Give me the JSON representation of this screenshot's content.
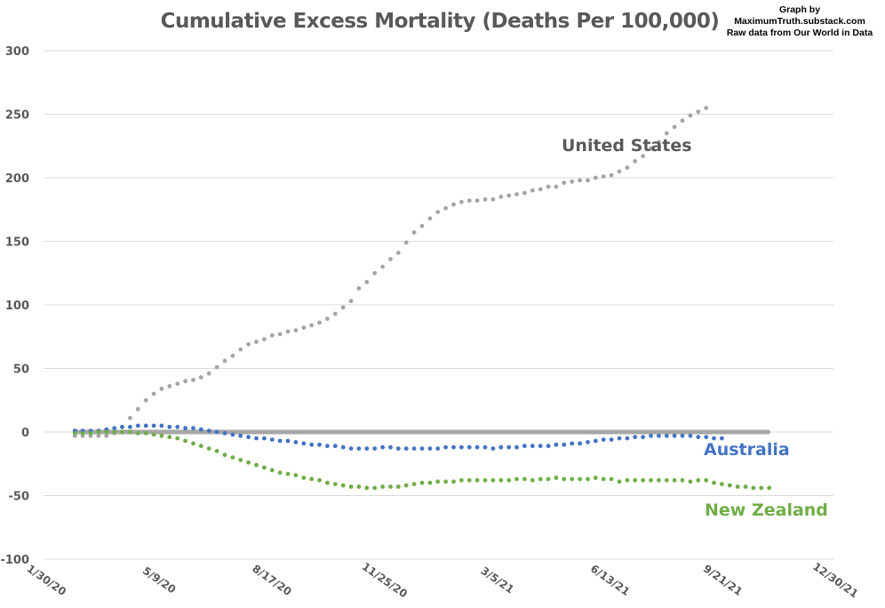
{
  "chart_data": {
    "type": "line",
    "title": "Cumulative Excess Mortality (Deaths Per 100,000)",
    "credit": [
      "Graph by",
      "MaximumTruth.substack.com",
      "Raw data from Our World in Data"
    ],
    "xlabel": "",
    "ylabel": "",
    "ylim": [
      -100,
      300
    ],
    "yticks": [
      300,
      250,
      200,
      150,
      100,
      50,
      0,
      -50,
      -100
    ],
    "ytick_labels": [
      "300",
      "250",
      "200",
      "150",
      "100",
      "50",
      "0",
      "-50",
      "-100"
    ],
    "xlim_days": [
      0,
      700
    ],
    "xticks_days": [
      0,
      100,
      200,
      300,
      400,
      500,
      600,
      700
    ],
    "xtick_labels": [
      "1/30/20",
      "5/9/20",
      "8/17/20",
      "11/25/20",
      "3/5/21",
      "6/13/21",
      "9/21/21",
      "12/30/21"
    ],
    "grid": true,
    "legend": "inline-labels",
    "x_start_day": 27,
    "x_step_days": 7,
    "baseline": {
      "name": "Zero baseline",
      "value": 0,
      "color": "#a6a6a6",
      "end_day": 642
    },
    "series": [
      {
        "name": "United States",
        "label": "United States",
        "color": "#a5a5a5",
        "label_color": "#595959",
        "values": [
          -3,
          -3,
          -3,
          -3,
          -3,
          -1,
          4,
          11,
          18,
          25,
          30,
          34,
          36,
          38,
          40,
          41,
          43,
          46,
          51,
          56,
          60,
          65,
          69,
          71,
          73,
          76,
          77,
          79,
          80,
          82,
          84,
          86,
          89,
          93,
          98,
          103,
          113,
          118,
          125,
          130,
          136,
          141,
          149,
          157,
          162,
          168,
          173,
          176,
          179,
          181,
          182,
          182,
          183,
          183,
          185,
          186,
          187,
          188,
          190,
          191,
          193,
          193,
          196,
          197,
          198,
          198,
          200,
          201,
          202,
          205,
          208,
          213,
          217,
          223,
          228,
          235,
          240,
          245,
          249,
          252,
          255
        ]
      },
      {
        "name": "Australia",
        "label": "Australia",
        "color": "#4472c4",
        "label_color": "#4472c4",
        "values": [
          1,
          1,
          1,
          1,
          2,
          3,
          4,
          4,
          5,
          5,
          5,
          5,
          4,
          4,
          3,
          3,
          2,
          1,
          0,
          -1,
          -2,
          -3,
          -4,
          -5,
          -5,
          -6,
          -7,
          -7,
          -8,
          -9,
          -10,
          -10,
          -11,
          -11,
          -12,
          -13,
          -13,
          -13,
          -13,
          -12,
          -12,
          -13,
          -13,
          -13,
          -13,
          -13,
          -13,
          -12,
          -12,
          -12,
          -12,
          -12,
          -12,
          -13,
          -12,
          -12,
          -12,
          -11,
          -11,
          -11,
          -11,
          -10,
          -10,
          -9,
          -9,
          -8,
          -7,
          -6,
          -6,
          -5,
          -5,
          -4,
          -4,
          -3,
          -3,
          -3,
          -3,
          -3,
          -3,
          -4,
          -4,
          -5,
          -5
        ]
      },
      {
        "name": "New Zealand",
        "label": "New Zealand",
        "color": "#70ad47",
        "label_color": "#70ad47",
        "values": [
          -1,
          -1,
          -1,
          0,
          0,
          0,
          0,
          0,
          -1,
          -1,
          -2,
          -3,
          -4,
          -5,
          -7,
          -9,
          -11,
          -13,
          -15,
          -18,
          -20,
          -22,
          -24,
          -26,
          -28,
          -30,
          -32,
          -33,
          -34,
          -36,
          -37,
          -38,
          -40,
          -41,
          -42,
          -43,
          -43,
          -44,
          -44,
          -43,
          -43,
          -43,
          -42,
          -41,
          -40,
          -40,
          -39,
          -39,
          -39,
          -38,
          -38,
          -38,
          -38,
          -38,
          -38,
          -38,
          -37,
          -37,
          -38,
          -37,
          -37,
          -36,
          -37,
          -37,
          -37,
          -37,
          -36,
          -37,
          -37,
          -39,
          -38,
          -38,
          -38,
          -38,
          -38,
          -38,
          -38,
          -38,
          -39,
          -38,
          -38,
          -40,
          -41,
          -42,
          -43,
          -43,
          -44,
          -44,
          -44
        ]
      }
    ]
  }
}
